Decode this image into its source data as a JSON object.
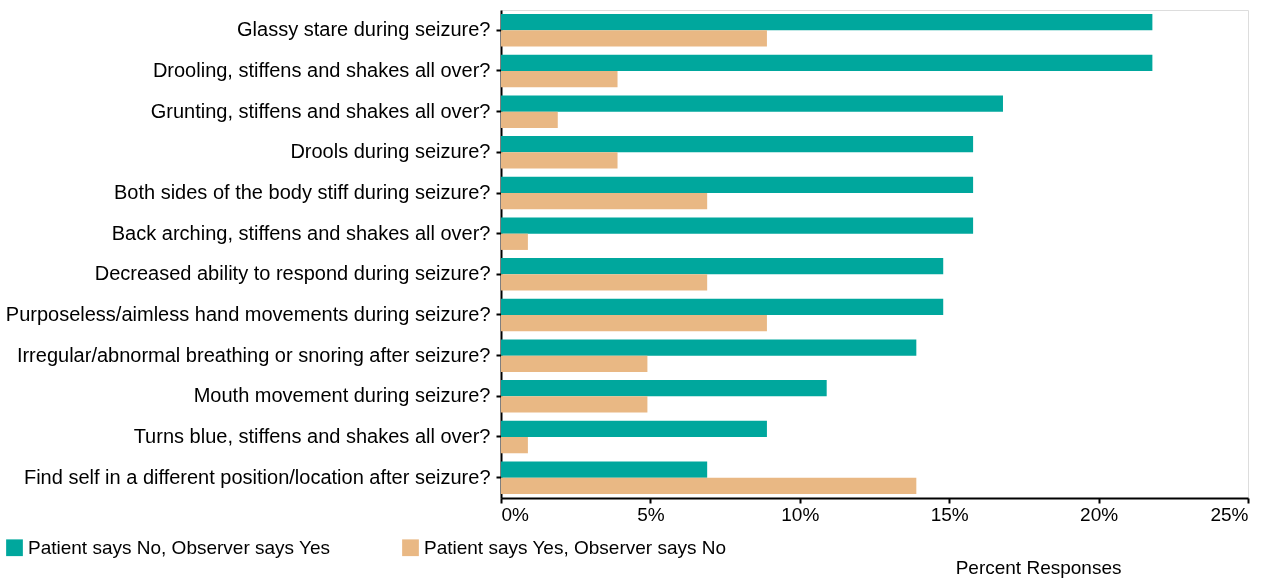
{
  "chart_data": {
    "type": "bar",
    "orientation": "horizontal",
    "xlabel": "Percent Responses",
    "categories": [
      "Glassy stare during seizure?",
      "Drooling, stiffens and shakes all over?",
      "Grunting, stiffens and shakes all over?",
      "Drools during seizure?",
      "Both sides of the body stiff during seizure?",
      "Back arching, stiffens and shakes all over?",
      "Decreased ability to respond during seizure?",
      "Purposeless/aimless hand movements during seizure?",
      "Irregular/abnormal breathing or snoring after seizure?",
      "Mouth movement during seizure?",
      "Turns blue, stiffens and shakes all over?",
      "Find self in a different position/location after seizure?"
    ],
    "series": [
      {
        "name": "Patient says No, Observer says Yes",
        "color": "#00a79d",
        "values": [
          21.8,
          21.8,
          16.8,
          15.8,
          15.8,
          15.8,
          14.8,
          14.8,
          13.9,
          10.9,
          8.9,
          6.9
        ]
      },
      {
        "name": "Patient says Yes, Observer says No",
        "color": "#e9b884",
        "values": [
          8.9,
          3.9,
          1.9,
          3.9,
          6.9,
          0.9,
          6.9,
          8.9,
          4.9,
          4.9,
          0.9,
          13.9
        ]
      }
    ],
    "xlim": [
      0,
      25
    ],
    "xticks": [
      {
        "value": 0,
        "label": "0%"
      },
      {
        "value": 5,
        "label": "5%"
      },
      {
        "value": 10,
        "label": "10%"
      },
      {
        "value": 15,
        "label": "15%"
      },
      {
        "value": 20,
        "label": "20%"
      },
      {
        "value": 25,
        "label": "25%"
      }
    ],
    "grid": false,
    "legend": "bottom left"
  }
}
